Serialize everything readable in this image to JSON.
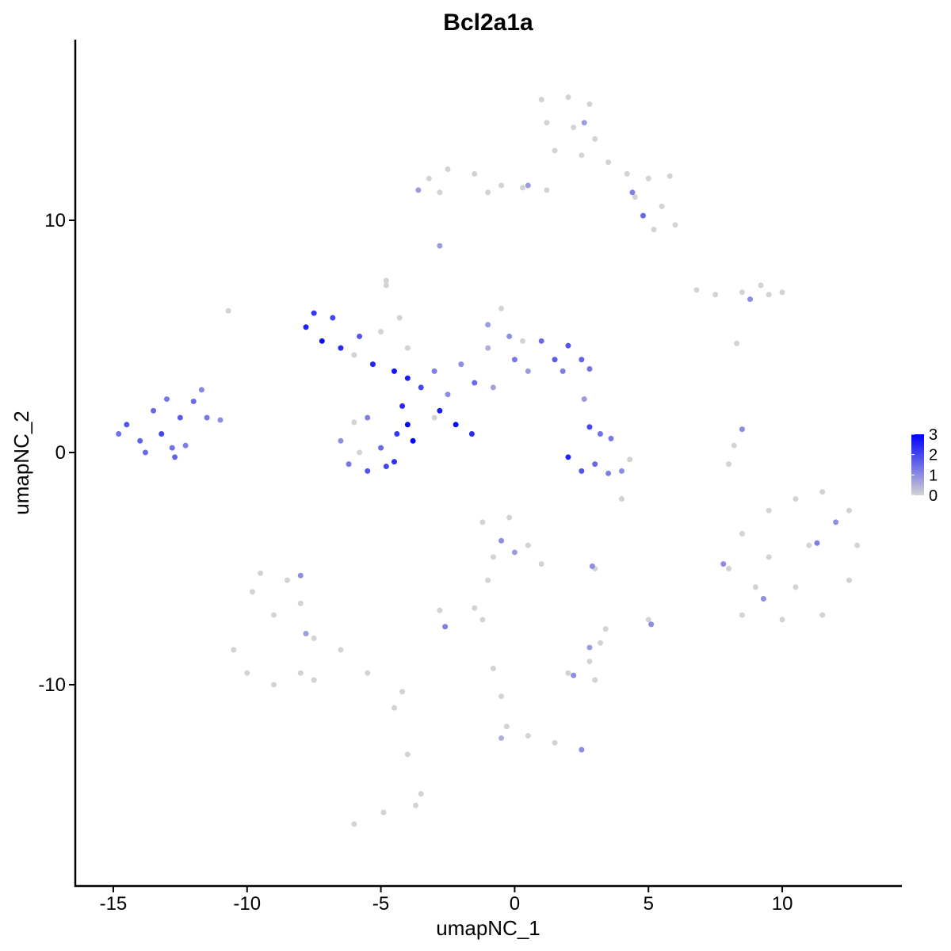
{
  "chart_data": {
    "type": "scatter",
    "title": "Bcl2a1a",
    "x_label": "umapNC_1",
    "y_label": "umapNC_2",
    "xlim": [
      -16.42,
      14.47
    ],
    "ylim": [
      -18.67,
      17.78
    ],
    "xticks": [
      -15,
      -10,
      -5,
      0,
      5,
      10
    ],
    "yticks": [
      -10,
      0,
      10
    ],
    "color_low": "#d3d3d3",
    "color_high": "#0000ff",
    "colorlim": [
      0,
      3
    ],
    "colorticks": [
      0,
      1,
      2,
      3
    ],
    "x": [
      1.0,
      2.0,
      2.8,
      1.2,
      2.2,
      3.0,
      1.5,
      2.5,
      3.5,
      4.2,
      5.0,
      5.8,
      4.5,
      5.5,
      6.0,
      5.2,
      4.8,
      2.6,
      4.4,
      1.2,
      0.3,
      -3.2,
      -2.5,
      -1.5,
      -0.5,
      -2.8,
      -3.6,
      -1.0,
      0.5,
      -2.8,
      -4.8,
      -10.7,
      6.8,
      7.5,
      8.5,
      9.2,
      10.0,
      9.5,
      8.8,
      8.3,
      -14.5,
      -14.0,
      -13.5,
      -13.2,
      -12.8,
      -12.5,
      -12.0,
      -12.3,
      -11.5,
      -11.0,
      -11.7,
      -13.8,
      -14.8,
      -13.0,
      -12.7,
      -7.5,
      -7.8,
      -7.2,
      -6.8,
      -6.5,
      -5.8,
      -5.3,
      -4.5,
      -4.0,
      -3.5,
      -6.0,
      -5.0,
      -4.2,
      -4.0,
      -3.8,
      -4.4,
      -6.5,
      -6.2,
      -5.5,
      -5.0,
      -4.8,
      -6.0,
      -5.5,
      -4.5,
      -5.8,
      -2.8,
      -2.2,
      -1.6,
      -4.8,
      -4.3,
      -4.0,
      -3.0,
      -2.0,
      -1.5,
      -1.0,
      -1.0,
      -0.5,
      -0.2,
      0.0,
      0.5,
      1.0,
      1.5,
      2.0,
      2.5,
      2.8,
      1.8,
      -2.5,
      -3.0,
      -0.8,
      0.3,
      2.0,
      2.5,
      3.0,
      3.5,
      4.0,
      3.2,
      2.8,
      3.6,
      4.3,
      2.6,
      4.0,
      8.5,
      8.2,
      8.0,
      8.5,
      9.5,
      10.5,
      11.5,
      12.5,
      12.8,
      12.5,
      11.5,
      10.0,
      8.5,
      8.0,
      9.5,
      11.0,
      10.5,
      12.0,
      9.0,
      7.8,
      11.3,
      9.3,
      -9.5,
      -8.5,
      -10.5,
      -10.0,
      -9.0,
      -8.0,
      -7.5,
      -6.5,
      -5.5,
      -4.2,
      -9.0,
      -8.0,
      -9.8,
      -7.5,
      -4.5,
      -4.0,
      -3.5,
      -3.7,
      -6.0,
      -8.0,
      -7.8,
      -1.2,
      -0.2,
      0.5,
      1.0,
      -0.8,
      -0.5,
      0.0,
      -1.0,
      -1.5,
      -2.8,
      -2.6,
      -1.2,
      3.0,
      2.9,
      5.0,
      5.1,
      3.4,
      2.0,
      2.8,
      3.0,
      2.8,
      2.2,
      3.2,
      -0.8,
      -0.5,
      -0.3,
      0.5,
      1.5,
      2.5,
      -0.5,
      2.5,
      -4.9
    ],
    "y": [
      15.2,
      15.3,
      15.0,
      14.2,
      14.0,
      13.5,
      13.0,
      12.8,
      12.5,
      12.0,
      11.8,
      11.9,
      11.0,
      10.6,
      9.8,
      9.6,
      10.2,
      14.2,
      11.2,
      11.3,
      11.4,
      11.8,
      12.2,
      12.0,
      11.5,
      11.2,
      11.3,
      11.2,
      11.5,
      8.9,
      7.4,
      6.1,
      7.0,
      6.8,
      6.9,
      7.2,
      6.9,
      6.8,
      6.6,
      4.7,
      1.2,
      0.5,
      1.8,
      0.8,
      0.2,
      1.5,
      2.2,
      0.3,
      1.5,
      1.4,
      2.7,
      0.0,
      0.8,
      2.3,
      -0.2,
      6.0,
      5.4,
      4.8,
      5.8,
      4.5,
      5.0,
      3.8,
      3.5,
      3.2,
      2.8,
      4.2,
      5.2,
      2.0,
      1.2,
      0.5,
      0.8,
      0.5,
      -0.5,
      -0.8,
      0.2,
      -0.6,
      1.3,
      1.5,
      -0.4,
      0.0,
      1.8,
      1.2,
      0.8,
      7.2,
      5.8,
      4.5,
      3.5,
      3.8,
      3.0,
      4.5,
      5.5,
      6.2,
      5.0,
      4.0,
      3.5,
      4.8,
      4.0,
      4.6,
      4.0,
      3.6,
      3.5,
      2.5,
      1.5,
      2.8,
      4.8,
      -0.2,
      -0.8,
      -0.5,
      -0.9,
      -0.8,
      0.8,
      1.1,
      0.6,
      -0.3,
      2.3,
      -2.0,
      1.0,
      0.3,
      -0.5,
      -3.5,
      -2.5,
      -2.0,
      -1.7,
      -2.5,
      -4.0,
      -5.5,
      -7.0,
      -7.2,
      -7.0,
      -5.0,
      -4.5,
      -4.0,
      -5.8,
      -3.0,
      -5.8,
      -4.8,
      -3.9,
      -6.3,
      -5.2,
      -5.5,
      -8.5,
      -9.5,
      -10.0,
      -9.5,
      -8.0,
      -8.5,
      -9.5,
      -10.3,
      -7.0,
      -6.5,
      -6.0,
      -9.8,
      -11.0,
      -13.0,
      -14.7,
      -15.2,
      -16.0,
      -5.3,
      -7.8,
      -3.0,
      -2.8,
      -4.0,
      -4.8,
      -4.5,
      -3.8,
      -4.3,
      -5.5,
      -6.7,
      -6.8,
      -7.5,
      -7.2,
      -5.0,
      -4.9,
      -7.2,
      -7.4,
      -7.6,
      -9.5,
      -9.0,
      -9.8,
      -8.4,
      -9.6,
      -8.2,
      -9.3,
      -10.5,
      -11.8,
      -12.2,
      -12.5,
      -12.8,
      -12.3,
      -12.8,
      -15.5
    ],
    "values": [
      0,
      0,
      0,
      0,
      0,
      0,
      0,
      0,
      0,
      0,
      0,
      0,
      0,
      0,
      0,
      0,
      1.5,
      0.8,
      1.2,
      0,
      0,
      0,
      0,
      0,
      0,
      0,
      0.8,
      0,
      0.8,
      0.8,
      0,
      0,
      0,
      0,
      0,
      0,
      0,
      0,
      1.0,
      0,
      1.8,
      1.6,
      1.5,
      2.0,
      1.4,
      1.7,
      1.5,
      1.2,
      1.3,
      1.0,
      1.1,
      1.5,
      1.4,
      1.3,
      1.6,
      2.2,
      2.5,
      2.8,
      2.0,
      2.4,
      1.8,
      2.5,
      2.7,
      2.6,
      2.0,
      0,
      0,
      2.4,
      2.9,
      3.0,
      2.2,
      1.0,
      1.3,
      1.8,
      1.5,
      2.0,
      0,
      1.2,
      2.3,
      0,
      2.6,
      2.8,
      2.4,
      0,
      0,
      0,
      1.2,
      1.0,
      1.5,
      0.5,
      0.8,
      0,
      1.0,
      1.3,
      0.8,
      1.5,
      1.7,
      1.8,
      1.6,
      1.4,
      1.2,
      1.0,
      0,
      0.7,
      0,
      2.5,
      1.8,
      1.5,
      1.2,
      1.0,
      1.4,
      2.0,
      1.3,
      0,
      0.8,
      0,
      1.0,
      0,
      0,
      0,
      0,
      0,
      0,
      0,
      0,
      0,
      0,
      0,
      0,
      0,
      0,
      0,
      0,
      1.0,
      0,
      1.0,
      1.2,
      1.0,
      0,
      0,
      0,
      0,
      0,
      0,
      0,
      0,
      0,
      0,
      0,
      0,
      0,
      0,
      0,
      0,
      0,
      0,
      0,
      1.0,
      0.8,
      0,
      0,
      0,
      0,
      0,
      1.0,
      0.8,
      0,
      0,
      0,
      1.2,
      0,
      0,
      1.0,
      0,
      1.0,
      0,
      0,
      0,
      0,
      0.8,
      1.0,
      0,
      0,
      0,
      0,
      0,
      0,
      0,
      0.5,
      1.0,
      0
    ]
  }
}
